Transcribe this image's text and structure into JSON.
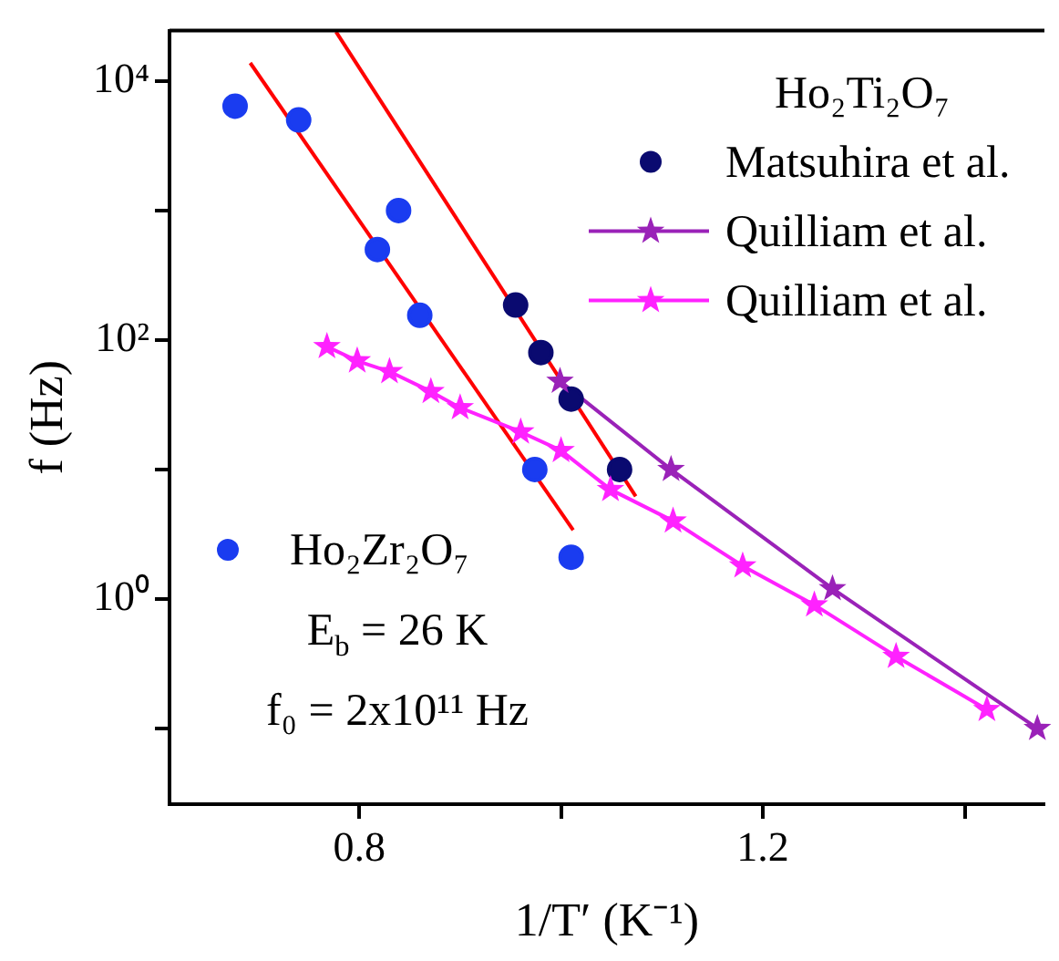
{
  "chart_data": {
    "type": "scatter",
    "xlabel": "1/T′ (K⁻¹)",
    "ylabel": "f (Hz)",
    "legend_title": "Ho₂Ti₂O₇",
    "legend": "top right",
    "log": "y",
    "xlim": [
      0.612,
      1.479
    ],
    "xticks": [
      0.8,
      {
        "value": 1.0,
        "label": null
      },
      1.2,
      {
        "value": 1.4,
        "label": null
      }
    ],
    "ylim": [
      0.026,
      24500
    ],
    "yticks": [
      {
        "value": 10000,
        "label": "10⁴"
      },
      {
        "value": 1000,
        "label": null
      },
      {
        "value": 100,
        "label": "10²"
      },
      {
        "value": 10,
        "label": null
      },
      {
        "value": 1,
        "label": "10⁰"
      },
      {
        "value": 0.1,
        "label": null
      }
    ],
    "annotations": [
      "E$_{b}$ = 26 K",
      "f₀ = 2x10¹¹ Hz"
    ],
    "series": [
      {
        "name": "Ho₂Zr₂O₇",
        "type": "scatter",
        "marker": "circle",
        "color": "#1a3cf0",
        "x": [
          0.677,
          0.74,
          0.818,
          0.839,
          0.86,
          0.974,
          1.01
        ],
        "values": [
          6400,
          5000,
          500,
          1000,
          155,
          10,
          2.1
        ]
      },
      {
        "name": "Matsuhira et al.",
        "type": "scatter",
        "marker": "circle",
        "color": "#0a0a70",
        "x": [
          0.955,
          0.98,
          1.01,
          1.058
        ],
        "values": [
          186,
          80,
          35,
          10
        ]
      },
      {
        "name": "Quilliam et al.",
        "type": "line",
        "marker": "star",
        "color": "#9a22b8",
        "x": [
          0.999,
          1.109,
          1.269,
          1.472
        ],
        "values": [
          48,
          10,
          1.2,
          0.1
        ]
      },
      {
        "name": "Quilliam et al.",
        "type": "line",
        "marker": "star",
        "color": "#ff22ff",
        "x": [
          0.768,
          0.798,
          0.83,
          0.871,
          0.9,
          0.96,
          1.0,
          1.049,
          1.111,
          1.18,
          1.251,
          1.332,
          1.422
        ],
        "values": [
          89,
          69,
          57,
          40,
          30,
          19.5,
          14,
          7,
          4,
          1.8,
          0.9,
          0.36,
          0.14
        ]
      },
      {
        "type": "line",
        "marker": "none",
        "color": "#ff0000",
        "x": [
          0.692,
          1.012
        ],
        "values": [
          13800,
          3.4
        ]
      },
      {
        "type": "line",
        "marker": "none",
        "color": "#ff0000",
        "x": [
          0.777,
          1.074
        ],
        "values": [
          24000,
          6.2
        ]
      }
    ]
  }
}
